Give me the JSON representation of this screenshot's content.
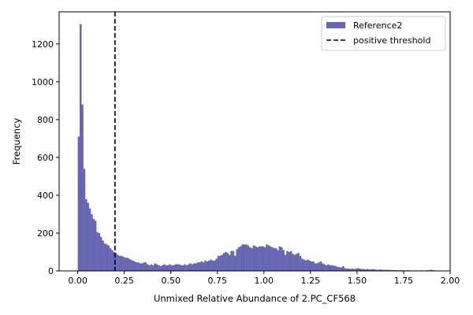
{
  "chart_data": {
    "type": "histogram",
    "title": "",
    "xlabel": "Unmixed Relative Abundance of 2.PC_CF568",
    "ylabel": "Frequency",
    "xlim": [
      -0.1,
      2.0
    ],
    "ylim": [
      0,
      1370
    ],
    "xticks": [
      0.0,
      0.25,
      0.5,
      0.75,
      1.0,
      1.25,
      1.5,
      1.75,
      2.0
    ],
    "xtick_labels": [
      "0.00",
      "0.25",
      "0.50",
      "0.75",
      "1.00",
      "1.25",
      "1.50",
      "1.75",
      "2.00"
    ],
    "yticks": [
      0,
      200,
      400,
      600,
      800,
      1000,
      1200
    ],
    "ytick_labels": [
      "0",
      "200",
      "400",
      "600",
      "800",
      "1000",
      "1200"
    ],
    "grid": false,
    "legend_position": "top-right",
    "bin_start": 0.0,
    "bin_width": 0.01,
    "series": [
      {
        "name": "Reference2",
        "color": "#6666b2",
        "values": [
          710,
          1305,
          880,
          540,
          380,
          360,
          330,
          300,
          275,
          265,
          205,
          200,
          180,
          160,
          145,
          140,
          135,
          120,
          110,
          100,
          95,
          85,
          80,
          80,
          75,
          70,
          70,
          65,
          60,
          55,
          50,
          45,
          45,
          40,
          40,
          45,
          45,
          35,
          30,
          35,
          30,
          40,
          35,
          30,
          25,
          30,
          35,
          30,
          30,
          35,
          30,
          30,
          35,
          35,
          35,
          30,
          30,
          35,
          30,
          35,
          40,
          35,
          40,
          40,
          45,
          45,
          50,
          45,
          55,
          50,
          55,
          60,
          55,
          55,
          65,
          80,
          80,
          85,
          95,
          100,
          95,
          85,
          105,
          105,
          80,
          115,
          125,
          130,
          140,
          140,
          140,
          135,
          125,
          120,
          135,
          130,
          125,
          130,
          130,
          130,
          125,
          140,
          135,
          130,
          125,
          120,
          120,
          110,
          130,
          125,
          110,
          85,
          105,
          100,
          105,
          90,
          85,
          90,
          95,
          80,
          65,
          60,
          55,
          60,
          55,
          50,
          50,
          40,
          40,
          45,
          50,
          40,
          35,
          30,
          35,
          30,
          30,
          28,
          25,
          22,
          20,
          18,
          25,
          15,
          12,
          12,
          10,
          12,
          10,
          12,
          15,
          12,
          10,
          10,
          8,
          10,
          8,
          8,
          10,
          8,
          6,
          6,
          8,
          6,
          6,
          5,
          6,
          5,
          4,
          5,
          4,
          4,
          3,
          4,
          3,
          3,
          3,
          3,
          3,
          2,
          2,
          3,
          2,
          2,
          3,
          2,
          2,
          4,
          3,
          6,
          4,
          3,
          2,
          2,
          2,
          2,
          2,
          2,
          2,
          2
        ]
      }
    ],
    "threshold": {
      "name": "positive threshold",
      "x": 0.2,
      "color": "#000000",
      "style": "dashed"
    }
  }
}
